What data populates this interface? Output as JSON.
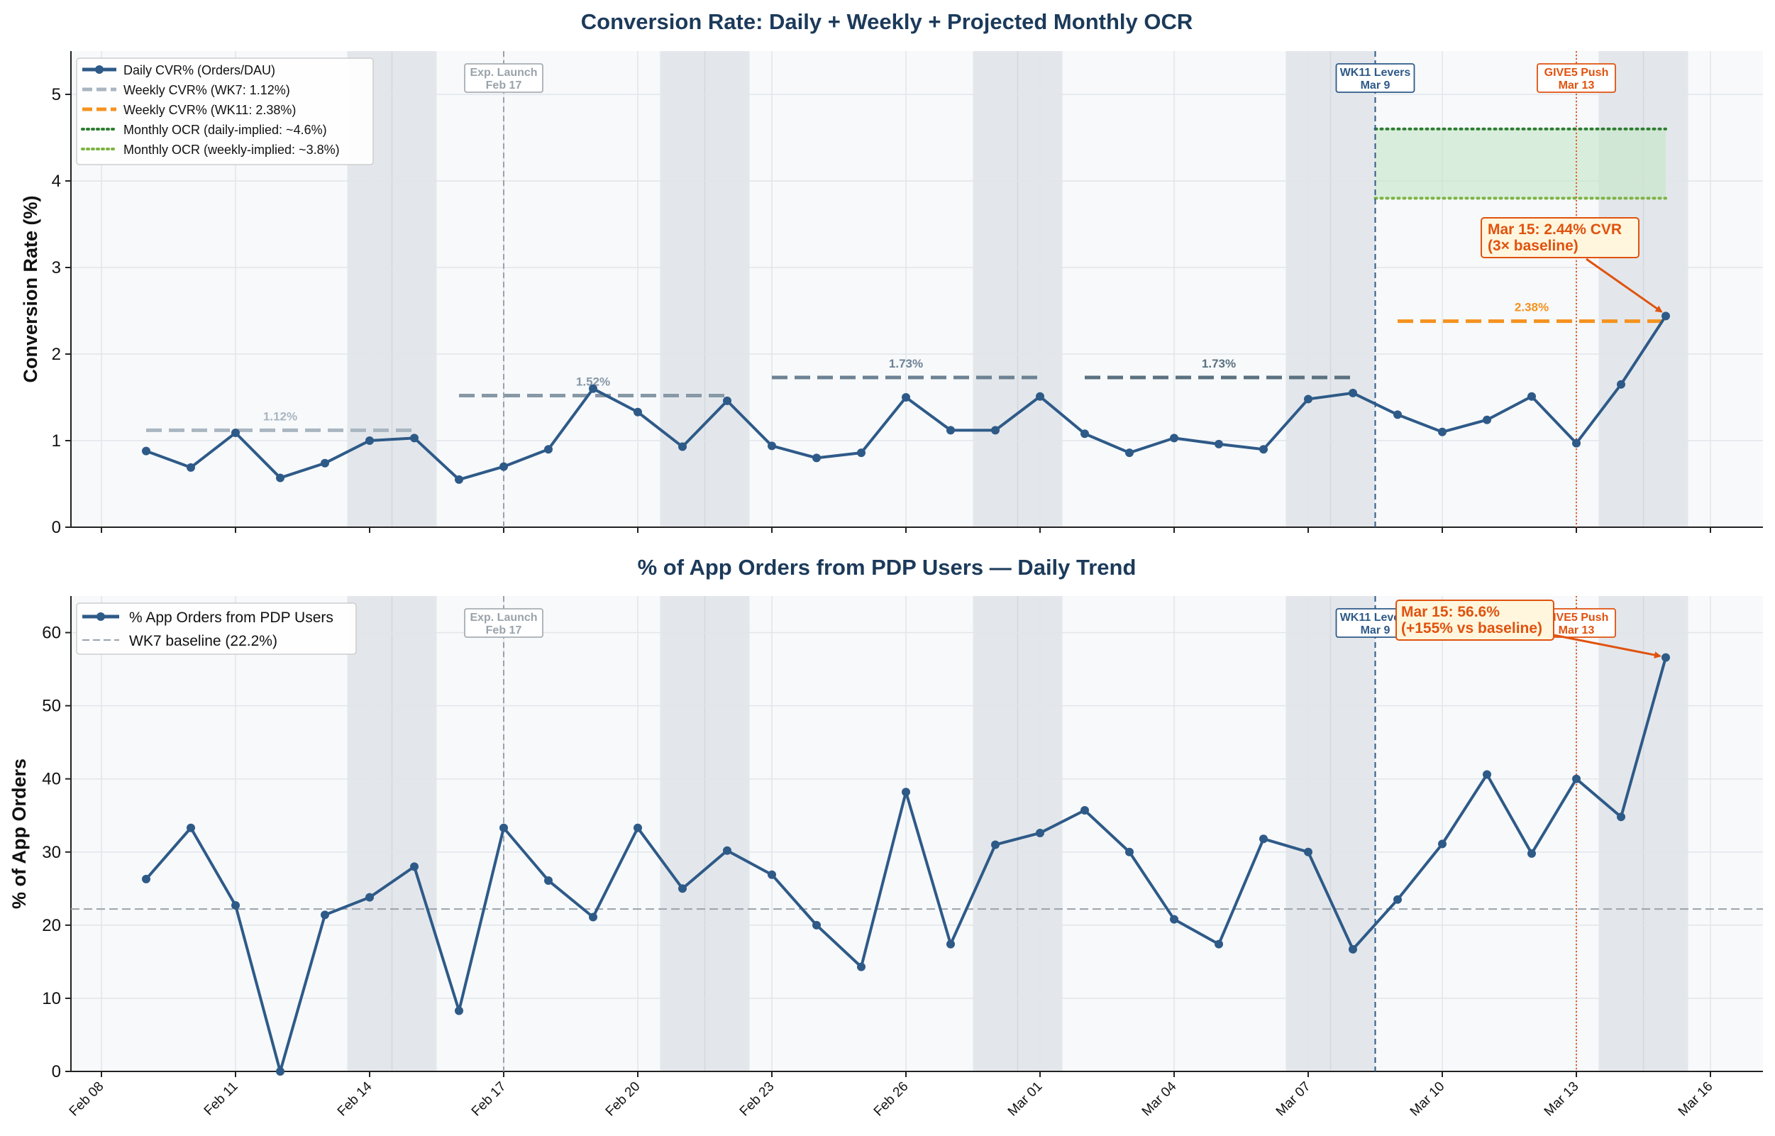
{
  "colors": {
    "daily": "#2e5a88",
    "weekly_base": "#a9b6c1",
    "weekly_mid1": "#8798a6",
    "weekly_mid2": "#6d8293",
    "weekly_mid3": "#5b7180",
    "weekly_wk11": "#f5921e",
    "ocr_daily": "#2e7d32",
    "ocr_weekly": "#7cb342",
    "ocr_band": "#c8e6c9",
    "weekend": "#e3e7eb",
    "plot_bg": "#f7f9fb",
    "title": "#1c3a5a",
    "annot": "#e0520f",
    "annot_bg": "#fff6dd",
    "exp_launch": "#9aa3ab",
    "wk11": "#2e5a88",
    "give5": "#e0520f"
  },
  "chart_data": [
    {
      "type": "line",
      "title": "Conversion Rate: Daily + Weekly + Projected Monthly OCR",
      "ylabel": "Conversion Rate (%)",
      "xlabel": "",
      "ylim": [
        0,
        5.5
      ],
      "yticks": [
        0,
        1,
        2,
        3,
        4,
        5
      ],
      "legend_position": "upper-left",
      "x_dates": [
        "2026-02-09",
        "2026-02-10",
        "2026-02-11",
        "2026-02-12",
        "2026-02-13",
        "2026-02-14",
        "2026-02-15",
        "2026-02-16",
        "2026-02-17",
        "2026-02-18",
        "2026-02-19",
        "2026-02-20",
        "2026-02-21",
        "2026-02-22",
        "2026-02-23",
        "2026-02-24",
        "2026-02-25",
        "2026-02-26",
        "2026-02-27",
        "2026-02-28",
        "2026-03-01",
        "2026-03-02",
        "2026-03-03",
        "2026-03-04",
        "2026-03-05",
        "2026-03-06",
        "2026-03-07",
        "2026-03-08",
        "2026-03-09",
        "2026-03-10",
        "2026-03-11",
        "2026-03-12",
        "2026-03-13",
        "2026-03-14",
        "2026-03-15"
      ],
      "series": [
        {
          "name": "Daily CVR% (Orders/DAU)",
          "values": [
            0.88,
            0.69,
            1.09,
            0.57,
            0.74,
            1.0,
            1.03,
            0.55,
            0.7,
            0.9,
            1.6,
            1.33,
            0.93,
            1.46,
            0.94,
            0.8,
            0.86,
            1.5,
            1.12,
            1.12,
            1.51,
            1.08,
            0.86,
            1.03,
            0.96,
            0.9,
            1.48,
            1.55,
            1.3,
            1.1,
            1.24,
            1.51,
            0.97,
            1.65,
            2.44
          ]
        }
      ],
      "weekly_segments": [
        {
          "name": "Weekly CVR% (WK7: 1.12%)",
          "start": "2026-02-09",
          "end": "2026-02-15",
          "value": 1.12,
          "label": "1.12%"
        },
        {
          "start": "2026-02-16",
          "end": "2026-02-22",
          "value": 1.52,
          "label": "1.52%"
        },
        {
          "start": "2026-02-23",
          "end": "2026-03-01",
          "value": 1.73,
          "label": "1.73%"
        },
        {
          "start": "2026-03-02",
          "end": "2026-03-08",
          "value": 1.73,
          "label": "1.73%"
        },
        {
          "name": "Weekly CVR% (WK11: 2.38%)",
          "start": "2026-03-09",
          "end": "2026-03-15",
          "value": 2.38,
          "label": "2.38%"
        }
      ],
      "monthly_ocr": [
        {
          "name": "Monthly OCR (daily-implied: ~4.6%)",
          "value": 4.6,
          "start": "2026-03-09",
          "end": "2026-03-15"
        },
        {
          "name": "Monthly OCR (weekly-implied: ~3.8%)",
          "value": 3.8,
          "start": "2026-03-09",
          "end": "2026-03-15"
        }
      ],
      "event_markers": [
        {
          "date": "2026-02-17",
          "line1": "Exp. Launch",
          "line2": "Feb 17"
        },
        {
          "date": "2026-03-08.5",
          "line1": "WK11 Levers",
          "line2": "Mar 9"
        },
        {
          "date": "2026-03-13",
          "line1": "GIVE5 Push",
          "line2": "Mar 13"
        }
      ],
      "annotation": {
        "line1": "Mar 15: 2.44% CVR",
        "line2": "(3× baseline)",
        "target_date": "2026-03-15",
        "target_value": 2.44
      }
    },
    {
      "type": "line",
      "title": "% of App Orders from PDP Users — Daily Trend",
      "ylabel": "% of App Orders",
      "xlabel": "",
      "ylim": [
        0,
        65
      ],
      "yticks": [
        0,
        10,
        20,
        30,
        40,
        50,
        60
      ],
      "legend_position": "upper-left",
      "x_tick_labels": [
        "Feb 08",
        "Feb 11",
        "Feb 14",
        "Feb 17",
        "Feb 20",
        "Feb 23",
        "Feb 26",
        "Mar 01",
        "Mar 04",
        "Mar 07",
        "Mar 10",
        "Mar 13",
        "Mar 16"
      ],
      "series": [
        {
          "name": "% App Orders from PDP Users",
          "values": [
            26.3,
            33.3,
            22.7,
            0.0,
            21.4,
            23.8,
            28.0,
            8.3,
            33.3,
            26.1,
            21.1,
            33.3,
            25.0,
            30.2,
            26.9,
            20.0,
            14.3,
            38.2,
            17.4,
            31.0,
            32.6,
            35.7,
            30.0,
            20.8,
            17.4,
            31.8,
            30.0,
            16.7,
            23.5,
            31.1,
            40.6,
            29.8,
            40.0,
            34.8,
            56.6
          ]
        }
      ],
      "baseline": {
        "name": "WK7 baseline (22.2%)",
        "value": 22.2
      },
      "annotation": {
        "line1": "Mar 15: 56.6%",
        "line2": "(+155% vs baseline)",
        "target_date": "2026-03-15",
        "target_value": 56.6
      }
    }
  ]
}
